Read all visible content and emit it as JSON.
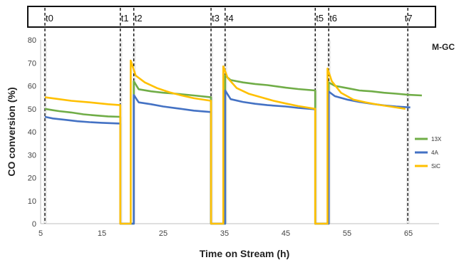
{
  "chart_data": {
    "type": "line",
    "xlabel": "Time on Stream (h)",
    "ylabel": "CO conversion (%)",
    "xlim": [
      5,
      70
    ],
    "ylim": [
      0,
      80
    ],
    "x_ticks": [
      5,
      15,
      25,
      35,
      45,
      55,
      65
    ],
    "y_ticks": [
      0,
      10,
      20,
      30,
      40,
      50,
      60,
      70,
      80
    ],
    "grid": false,
    "annotation": "M-GC",
    "legend": {
      "placement": "right",
      "entries": [
        "13X",
        "4A",
        "SiC"
      ]
    },
    "time_markers": [
      {
        "label": "t0",
        "x": 5.7
      },
      {
        "label": "t1",
        "x": 18.0
      },
      {
        "label": "t2",
        "x": 20.2
      },
      {
        "label": "t3",
        "x": 32.8
      },
      {
        "label": "t4",
        "x": 35.1
      },
      {
        "label": "t5",
        "x": 49.8
      },
      {
        "label": "t6",
        "x": 52.0
      },
      {
        "label": "t7",
        "x": 64.9
      }
    ],
    "series": [
      {
        "name": "13X",
        "color": "#70AD47",
        "points": [
          [
            5.7,
            50.0
          ],
          [
            7,
            49.4
          ],
          [
            8,
            49.0
          ],
          [
            10,
            48.4
          ],
          [
            12,
            47.6
          ],
          [
            14,
            47.1
          ],
          [
            16,
            46.7
          ],
          [
            18.0,
            46.5
          ],
          [
            18.0,
            0
          ],
          [
            20.2,
            0
          ],
          [
            20.2,
            62.0
          ],
          [
            21,
            58.5
          ],
          [
            23,
            57.6
          ],
          [
            25,
            57.0
          ],
          [
            27,
            56.6
          ],
          [
            30,
            55.8
          ],
          [
            32.8,
            55.0
          ],
          [
            32.8,
            0
          ],
          [
            35.1,
            0
          ],
          [
            35.1,
            64.5
          ],
          [
            36,
            62.5
          ],
          [
            38,
            61.5
          ],
          [
            40,
            60.8
          ],
          [
            42,
            60.3
          ],
          [
            45,
            59.2
          ],
          [
            47,
            58.6
          ],
          [
            49.8,
            58.0
          ],
          [
            49.8,
            0
          ],
          [
            52.0,
            0
          ],
          [
            52.0,
            61.5
          ],
          [
            53,
            60.0
          ],
          [
            55,
            59.0
          ],
          [
            57,
            58.0
          ],
          [
            59,
            57.6
          ],
          [
            61,
            57.0
          ],
          [
            63,
            56.6
          ],
          [
            65,
            56.1
          ],
          [
            67.2,
            55.8
          ]
        ]
      },
      {
        "name": "4A",
        "color": "#4472C4",
        "points": [
          [
            5.7,
            46.5
          ],
          [
            7,
            45.8
          ],
          [
            9,
            45.2
          ],
          [
            11,
            44.6
          ],
          [
            13,
            44.2
          ],
          [
            15,
            43.9
          ],
          [
            18.0,
            43.6
          ],
          [
            18.0,
            0
          ],
          [
            20.2,
            0
          ],
          [
            20.2,
            56.0
          ],
          [
            21,
            52.8
          ],
          [
            23,
            52.0
          ],
          [
            25,
            51.0
          ],
          [
            27,
            50.3
          ],
          [
            30,
            49.2
          ],
          [
            32.8,
            48.6
          ],
          [
            32.8,
            0
          ],
          [
            35.1,
            0
          ],
          [
            35.1,
            58.0
          ],
          [
            36,
            54.2
          ],
          [
            38,
            53.0
          ],
          [
            40,
            52.2
          ],
          [
            42,
            51.6
          ],
          [
            45,
            51.0
          ],
          [
            47,
            50.4
          ],
          [
            49.8,
            49.8
          ],
          [
            49.8,
            0
          ],
          [
            52.0,
            0
          ],
          [
            52.0,
            57.5
          ],
          [
            53,
            55.5
          ],
          [
            55,
            54.0
          ],
          [
            57,
            53.0
          ],
          [
            59,
            52.2
          ],
          [
            61,
            51.5
          ],
          [
            63,
            51.0
          ],
          [
            65.3,
            50.6
          ]
        ]
      },
      {
        "name": "SiC",
        "color": "#FFC000",
        "points": [
          [
            5.7,
            55.0
          ],
          [
            8,
            54.2
          ],
          [
            10,
            53.5
          ],
          [
            13,
            52.8
          ],
          [
            16,
            52.0
          ],
          [
            18.0,
            51.6
          ],
          [
            18.0,
            0
          ],
          [
            19.7,
            0
          ],
          [
            19.7,
            71.0
          ],
          [
            20.5,
            64.5
          ],
          [
            22,
            61.5
          ],
          [
            24,
            59.0
          ],
          [
            26,
            57.2
          ],
          [
            28,
            55.8
          ],
          [
            30,
            54.6
          ],
          [
            32.8,
            53.5
          ],
          [
            32.8,
            0
          ],
          [
            34.8,
            0
          ],
          [
            34.8,
            68.5
          ],
          [
            35.5,
            63.5
          ],
          [
            37,
            59.0
          ],
          [
            39,
            56.5
          ],
          [
            41,
            55.0
          ],
          [
            43,
            53.5
          ],
          [
            45,
            52.3
          ],
          [
            47,
            51.2
          ],
          [
            49.8,
            50.0
          ],
          [
            49.8,
            0
          ],
          [
            51.8,
            0
          ],
          [
            51.8,
            67.5
          ],
          [
            52.5,
            62.0
          ],
          [
            54,
            57.0
          ],
          [
            56,
            54.0
          ],
          [
            58,
            52.8
          ],
          [
            60,
            51.8
          ],
          [
            62,
            51.0
          ],
          [
            64.5,
            50.0
          ]
        ]
      }
    ]
  }
}
